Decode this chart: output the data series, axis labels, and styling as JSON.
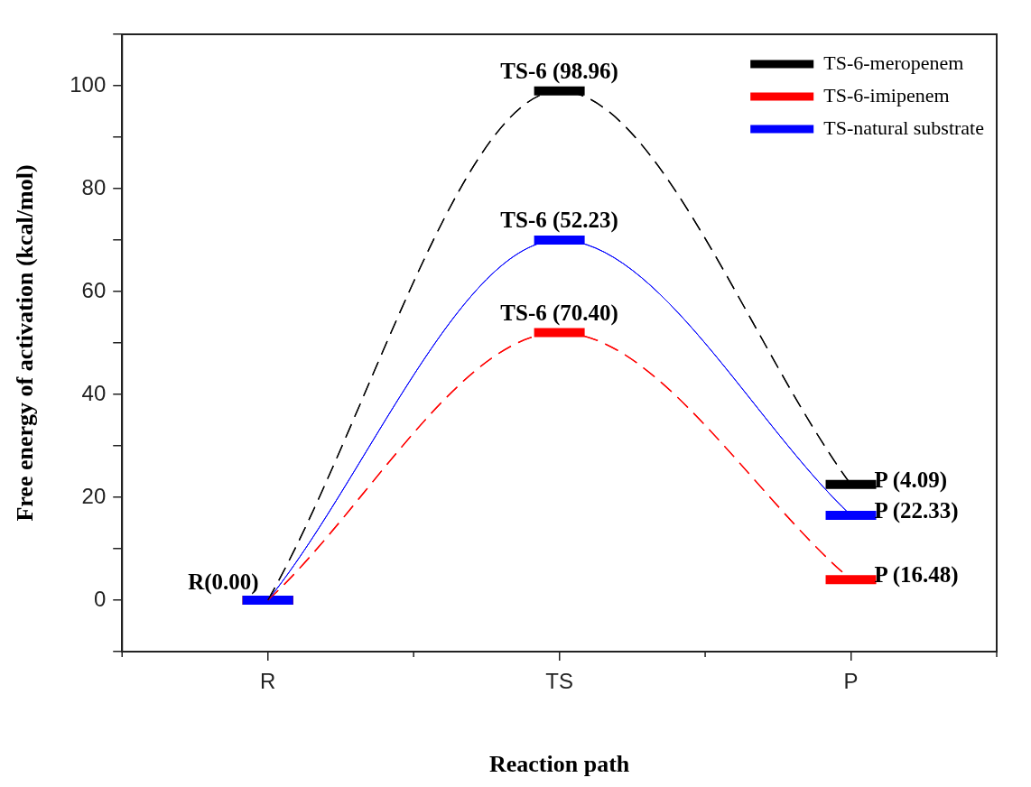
{
  "chart_data": {
    "type": "line",
    "xlabel": "Reaction path",
    "ylabel": "Free energy of activation (kcal/mol)",
    "categories": [
      "R",
      "TS",
      "P"
    ],
    "series": [
      {
        "name": "TS-6-meropenem",
        "color": "#000000",
        "line_style": "dashed",
        "values": [
          0,
          99,
          22.5
        ]
      },
      {
        "name": "TS-6-imipenem",
        "color": "#ff0000",
        "line_style": "dashed",
        "values": [
          0,
          52,
          4
        ]
      },
      {
        "name": "TS-natural substrate",
        "color": "#0000ff",
        "line_style": "solid",
        "values": [
          0,
          70,
          16.5
        ]
      }
    ],
    "ylim": [
      -10,
      110
    ],
    "yticks": [
      {
        "value": -10,
        "label": null
      },
      0,
      {
        "value": 10,
        "label": null
      },
      20,
      {
        "value": 30,
        "label": null
      },
      40,
      {
        "value": 50,
        "label": null
      },
      60,
      {
        "value": 70,
        "label": null
      },
      80,
      {
        "value": 90,
        "label": null
      },
      100,
      {
        "value": 110,
        "label": null
      }
    ],
    "annotations": [
      {
        "text": "R(0.00)",
        "x": "R",
        "y": 0
      },
      {
        "text": "TS-6 (98.96)",
        "x": "TS",
        "y": 99
      },
      {
        "text": "TS-6 (52.23)",
        "x": "TS",
        "y": 70
      },
      {
        "text": "TS-6 (70.40)",
        "x": "TS",
        "y": 52
      },
      {
        "text": "P (4.09)",
        "x": "P",
        "y": 22.5
      },
      {
        "text": "P (22.33)",
        "x": "P",
        "y": 16.5
      },
      {
        "text": "P (16.48)",
        "x": "P",
        "y": 4
      }
    ],
    "grid": false,
    "legend": "top right"
  }
}
